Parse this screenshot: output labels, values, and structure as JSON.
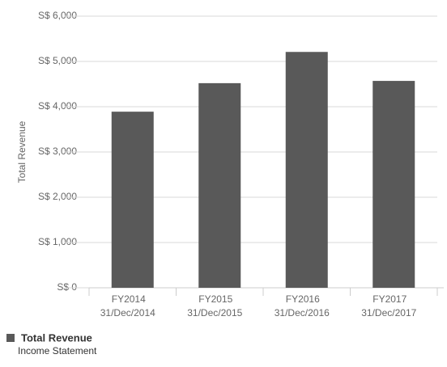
{
  "chart_data": {
    "type": "bar",
    "y_axis_label": "Total Revenue",
    "categories": [
      "FY2014",
      "FY2015",
      "FY2016",
      "FY2017"
    ],
    "category_dates": [
      "31/Dec/2014",
      "31/Dec/2015",
      "31/Dec/2016",
      "31/Dec/2017"
    ],
    "series": [
      {
        "name": "Total Revenue",
        "subtitle": "Income Statement",
        "color": "#595959",
        "values": [
          3890,
          4520,
          5210,
          4570
        ]
      }
    ],
    "ylim": [
      0,
      6000
    ],
    "yticks": [
      {
        "value": 0,
        "label": "S$ 0"
      },
      {
        "value": 1000,
        "label": "S$ 1,000"
      },
      {
        "value": 2000,
        "label": "S$ 2,000"
      },
      {
        "value": 3000,
        "label": "S$ 3,000"
      },
      {
        "value": 4000,
        "label": "S$ 4,000"
      },
      {
        "value": 5000,
        "label": "S$ 5,000"
      },
      {
        "value": 6000,
        "label": "S$ 6,000"
      }
    ],
    "grid": true
  }
}
